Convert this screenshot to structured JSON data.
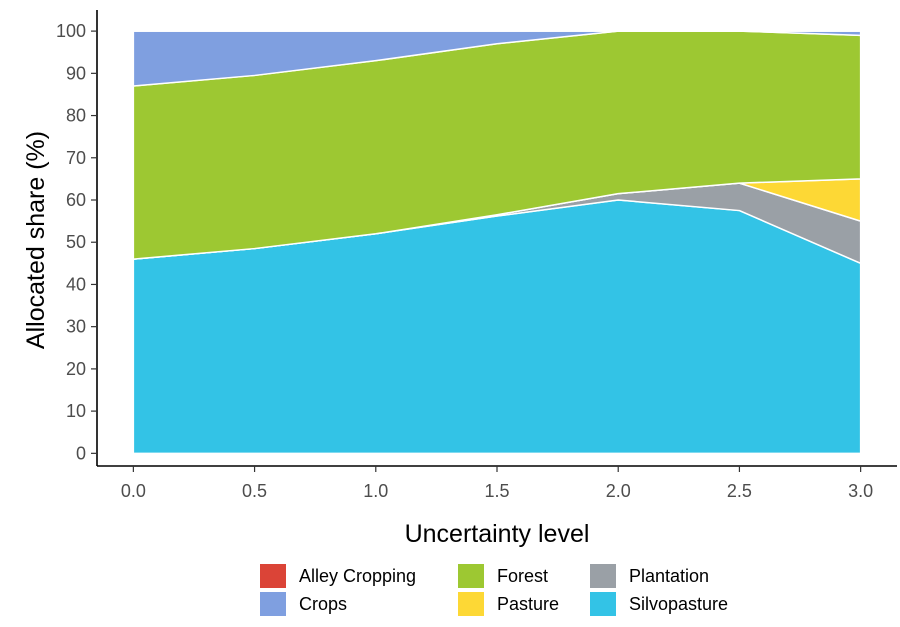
{
  "chart_data": {
    "type": "area",
    "stacked": true,
    "title": "",
    "xlabel": "Uncertainty level",
    "ylabel": "Allocated share (%)",
    "x": [
      0.0,
      0.5,
      1.0,
      1.5,
      2.0,
      2.5,
      3.0
    ],
    "xticks": [
      0.0,
      0.5,
      1.0,
      1.5,
      2.0,
      2.5,
      3.0
    ],
    "xtick_labels": [
      "0.0",
      "0.5",
      "1.0",
      "1.5",
      "2.0",
      "2.5",
      "3.0"
    ],
    "yticks": [
      0,
      10,
      20,
      30,
      40,
      50,
      60,
      70,
      80,
      90,
      100
    ],
    "ytick_labels": [
      "0",
      "10",
      "20",
      "30",
      "40",
      "50",
      "60",
      "70",
      "80",
      "90",
      "100"
    ],
    "xlim": [
      -0.15,
      3.15
    ],
    "ylim": [
      -3,
      105
    ],
    "grid": false,
    "legend_position": "bottom",
    "stack_order": [
      "Silvopasture",
      "Plantation",
      "Pasture",
      "Forest",
      "Crops",
      "Alley Cropping"
    ],
    "series": [
      {
        "name": "Alley Cropping",
        "color": "#DB4437",
        "values": [
          0,
          0,
          0,
          0,
          0,
          0,
          0
        ]
      },
      {
        "name": "Crops",
        "color": "#7F9FE0",
        "values": [
          13,
          10.5,
          7,
          3,
          0,
          0,
          1
        ]
      },
      {
        "name": "Forest",
        "color": "#9DC832",
        "values": [
          41,
          41,
          41,
          40.5,
          38.5,
          36,
          34
        ]
      },
      {
        "name": "Pasture",
        "color": "#FDD835",
        "values": [
          0,
          0,
          0,
          0,
          0,
          0,
          10
        ]
      },
      {
        "name": "Plantation",
        "color": "#9AA0A6",
        "values": [
          0,
          0,
          0,
          0.3,
          1.5,
          6.5,
          10
        ]
      },
      {
        "name": "Silvopasture",
        "color": "#33C3E6",
        "values": [
          46,
          48.5,
          52,
          56.2,
          60,
          57.5,
          45
        ]
      }
    ]
  }
}
